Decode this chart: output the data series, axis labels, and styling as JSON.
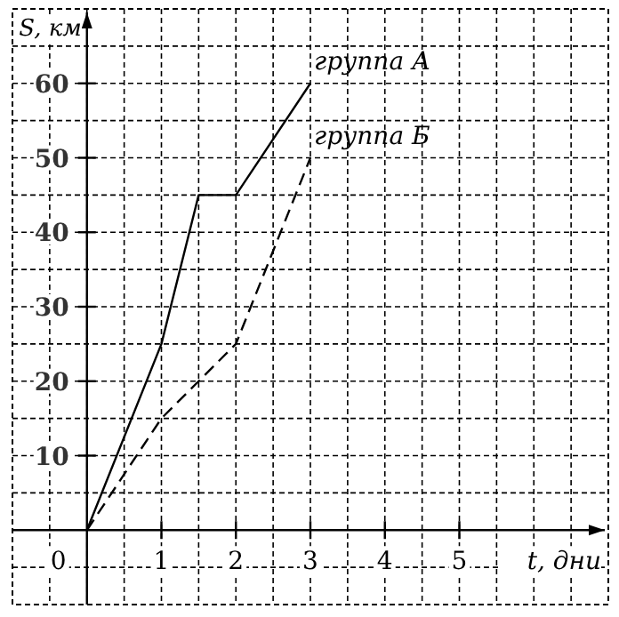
{
  "chart_data": {
    "type": "line",
    "xlabel": "t, дни",
    "ylabel": "S, км",
    "xlim": [
      -1,
      7
    ],
    "ylim": [
      -10,
      70
    ],
    "annotations": [
      "0"
    ],
    "xticks": [
      {
        "value": -0.5,
        "label": null
      },
      {
        "value": 0,
        "label": null
      },
      {
        "value": 0.5,
        "label": null
      },
      1,
      {
        "value": 1.5,
        "label": null
      },
      2,
      {
        "value": 2.5,
        "label": null
      },
      3,
      {
        "value": 3.5,
        "label": null
      },
      4,
      {
        "value": 4.5,
        "label": null
      },
      5,
      {
        "value": 5.5,
        "label": null
      },
      {
        "value": 6,
        "label": null
      },
      {
        "value": 6.5,
        "label": null
      }
    ],
    "yticks": [
      {
        "value": -5,
        "label": null
      },
      {
        "value": 0,
        "label": null
      },
      {
        "value": 5,
        "label": null
      },
      10,
      {
        "value": 15,
        "label": null
      },
      20,
      {
        "value": 25,
        "label": null
      },
      30,
      {
        "value": 35,
        "label": null
      },
      40,
      {
        "value": 45,
        "label": null
      },
      50,
      {
        "value": 55,
        "label": null
      },
      60,
      {
        "value": 65,
        "label": null
      }
    ],
    "grid": true,
    "marker": "none",
    "series": [
      {
        "name": "группа А",
        "color": "#000000",
        "x": [
          0,
          1,
          1.5,
          2,
          3
        ],
        "values": [
          0,
          25,
          45,
          45,
          60
        ],
        "line_style": "solid"
      },
      {
        "name": "группа Б",
        "color": "#000000",
        "x": [
          0,
          1,
          2,
          3
        ],
        "values": [
          0,
          15,
          25,
          50
        ],
        "line_style": "dashed"
      }
    ]
  }
}
